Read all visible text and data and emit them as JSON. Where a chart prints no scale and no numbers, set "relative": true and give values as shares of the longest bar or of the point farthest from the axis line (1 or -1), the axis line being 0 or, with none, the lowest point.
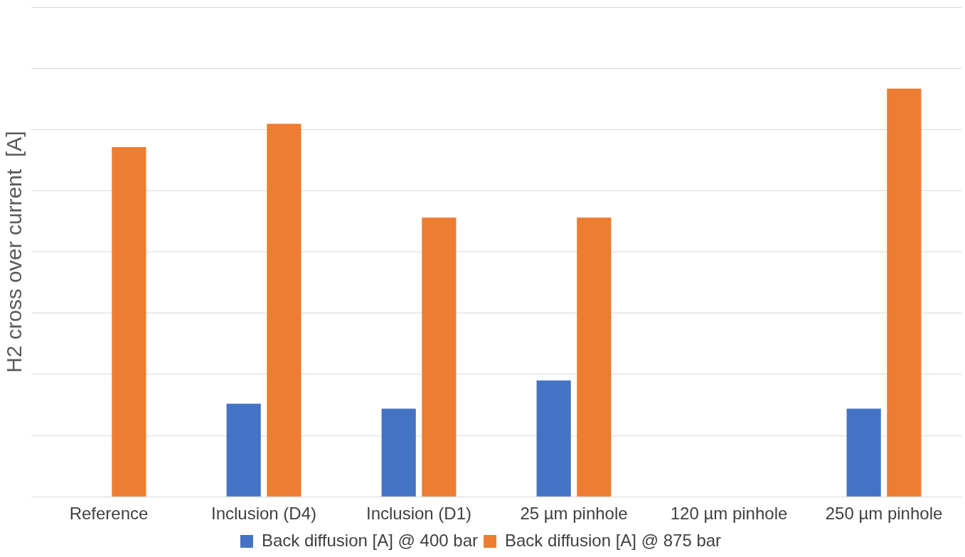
{
  "chart_data": {
    "type": "bar",
    "ylabel": "H2 cross over current  [A]",
    "categories": [
      "Reference",
      "Inclusion (D4)",
      "Inclusion (D1)",
      "25 µm pinhole",
      "120 µm pinhole",
      "250 µm pinhole"
    ],
    "series": [
      {
        "name": "Back diffusion [A] @ 400 bar",
        "color": "#4472c4",
        "values": [
          null,
          0.228,
          0.216,
          0.285,
          null,
          0.216
        ]
      },
      {
        "name": "Back diffusion [A] @ 875 bar",
        "color": "#ed7d31",
        "values": [
          0.857,
          0.914,
          0.684,
          0.684,
          null,
          1
        ]
      }
    ],
    "relative": true,
    "grid": "y",
    "legend": "bottom"
  }
}
